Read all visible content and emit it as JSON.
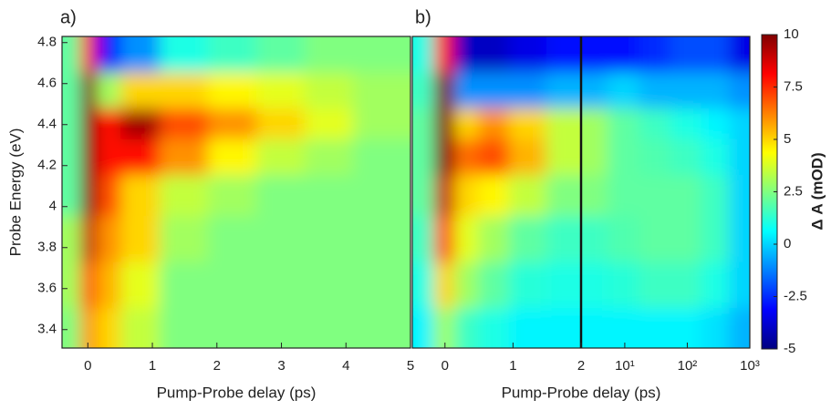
{
  "chart_data": [
    {
      "type": "heatmap",
      "panel_label": "a)",
      "xlabel": "Pump-Probe delay (ps)",
      "ylabel": "Probe Energy (eV)",
      "xlim": [
        -0.4,
        5
      ],
      "ylim": [
        3.31,
        4.83
      ],
      "xticks": [
        0,
        1,
        2,
        3,
        4,
        5
      ],
      "yticks": [
        3.4,
        3.6,
        3.8,
        4,
        4.2,
        4.4,
        4.6,
        4.8
      ],
      "x": [
        -0.2,
        0,
        0.3,
        0.75,
        1.5,
        2.25,
        3,
        3.75,
        4.5
      ],
      "y": [
        4.75,
        4.55,
        4.4,
        4.25,
        4.05,
        3.85,
        3.6,
        3.4
      ],
      "z": [
        [
          2,
          8,
          -3,
          -1,
          1,
          1.5,
          2,
          2.5,
          2.5
        ],
        [
          2,
          10,
          3,
          5,
          5,
          4.5,
          4,
          3.5,
          3
        ],
        [
          2,
          10,
          8,
          9.5,
          7,
          6,
          5,
          4,
          3
        ],
        [
          2,
          10,
          8,
          8,
          6,
          4.5,
          3.5,
          3,
          2.5
        ],
        [
          2,
          10,
          7,
          5,
          3.5,
          3,
          2.5,
          2.5,
          2.5
        ],
        [
          3,
          9,
          6,
          5,
          3,
          2.5,
          2.5,
          2.5,
          2.5
        ],
        [
          3,
          7,
          5.5,
          4,
          2.5,
          2.5,
          2.5,
          2.5,
          2.5
        ],
        [
          2.5,
          6,
          5,
          3.5,
          2.5,
          2.5,
          2.5,
          2.5,
          2.5
        ]
      ]
    },
    {
      "type": "heatmap",
      "panel_label": "b)",
      "xlabel": "Pump-Probe delay (ps)",
      "xlim": [
        -0.48,
        2
      ],
      "ylim": [
        3.31,
        4.83
      ],
      "xticks": [
        0,
        1,
        2
      ],
      "x": [
        -0.3,
        0,
        0.3,
        0.7,
        1.2,
        1.8
      ],
      "y": [
        4.75,
        4.55,
        4.4,
        4.25,
        4.05,
        3.85,
        3.6,
        3.4
      ],
      "z": [
        [
          1,
          8,
          -4,
          -4,
          -3.5,
          -3
        ],
        [
          1.5,
          10,
          -1,
          -1,
          -1,
          -0.5
        ],
        [
          2,
          10,
          5,
          6,
          5,
          3.5
        ],
        [
          2,
          10,
          6.5,
          7,
          5.5,
          3.5
        ],
        [
          2,
          9,
          5,
          4.5,
          3.5,
          2.5
        ],
        [
          1.5,
          7,
          4,
          3,
          2,
          1.5
        ],
        [
          1,
          5,
          3,
          2,
          1.2,
          1
        ],
        [
          0.5,
          3,
          1.5,
          1,
          0.5,
          0.5
        ]
      ],
      "x2scale": "log",
      "x2lim": [
        2,
        1000
      ],
      "x2ticks": [
        {
          "value": 10,
          "label": "10¹"
        },
        {
          "value": 100,
          "label": "10²"
        },
        {
          "value": 1000,
          "label": "10³"
        }
      ],
      "x2": [
        3,
        10,
        30,
        100,
        300,
        800
      ],
      "z2": [
        [
          -3,
          -3,
          -2.5,
          -2,
          -2,
          -3.5
        ],
        [
          -0.5,
          0,
          -0.5,
          -0.5,
          -0.5,
          -1
        ],
        [
          3,
          2,
          1.5,
          1,
          0.5,
          0
        ],
        [
          3,
          2,
          1.8,
          1.5,
          1,
          0
        ],
        [
          2.5,
          2,
          2,
          2,
          1.5,
          0
        ],
        [
          1.5,
          1.8,
          2,
          2,
          1.5,
          0
        ],
        [
          1,
          1.2,
          1.5,
          1.5,
          1,
          0
        ],
        [
          0.5,
          0.5,
          0.5,
          0.5,
          0.2,
          -0.5
        ]
      ]
    },
    {
      "type": "colorbar",
      "label": "Δ A (mOD)",
      "colormap": "jet",
      "lim": [
        -5,
        10
      ],
      "ticks": [
        -5,
        -2.5,
        0,
        2.5,
        5,
        7.5,
        10
      ]
    }
  ]
}
